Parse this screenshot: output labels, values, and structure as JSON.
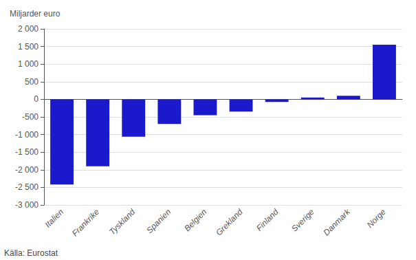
{
  "chart_data": {
    "type": "bar",
    "ylabel": "Miljarder euro",
    "annotations": [
      "Källa: Eurostat"
    ],
    "categories": [
      "Italien",
      "Frankrike",
      "Tyskland",
      "Spanien",
      "Belgien",
      "Grekland",
      "Finland",
      "Sverige",
      "Danmark",
      "Norge"
    ],
    "values": [
      -2420,
      -1900,
      -1060,
      -700,
      -450,
      -350,
      -75,
      50,
      100,
      1550
    ],
    "color": "#1a1acc",
    "ylim": [
      -3000,
      2000
    ],
    "yticks": [
      {
        "value": -3000,
        "label": "-3 000"
      },
      {
        "value": -2500,
        "label": "-2 500"
      },
      {
        "value": -2000,
        "label": "-2 000"
      },
      {
        "value": -1500,
        "label": "-1 500"
      },
      {
        "value": -1000,
        "label": "-1 000"
      },
      -500,
      0,
      500,
      {
        "value": 1000,
        "label": "1 000"
      },
      {
        "value": 1500,
        "label": "1 500"
      },
      {
        "value": 2000,
        "label": "2 000"
      }
    ],
    "grid": true
  }
}
